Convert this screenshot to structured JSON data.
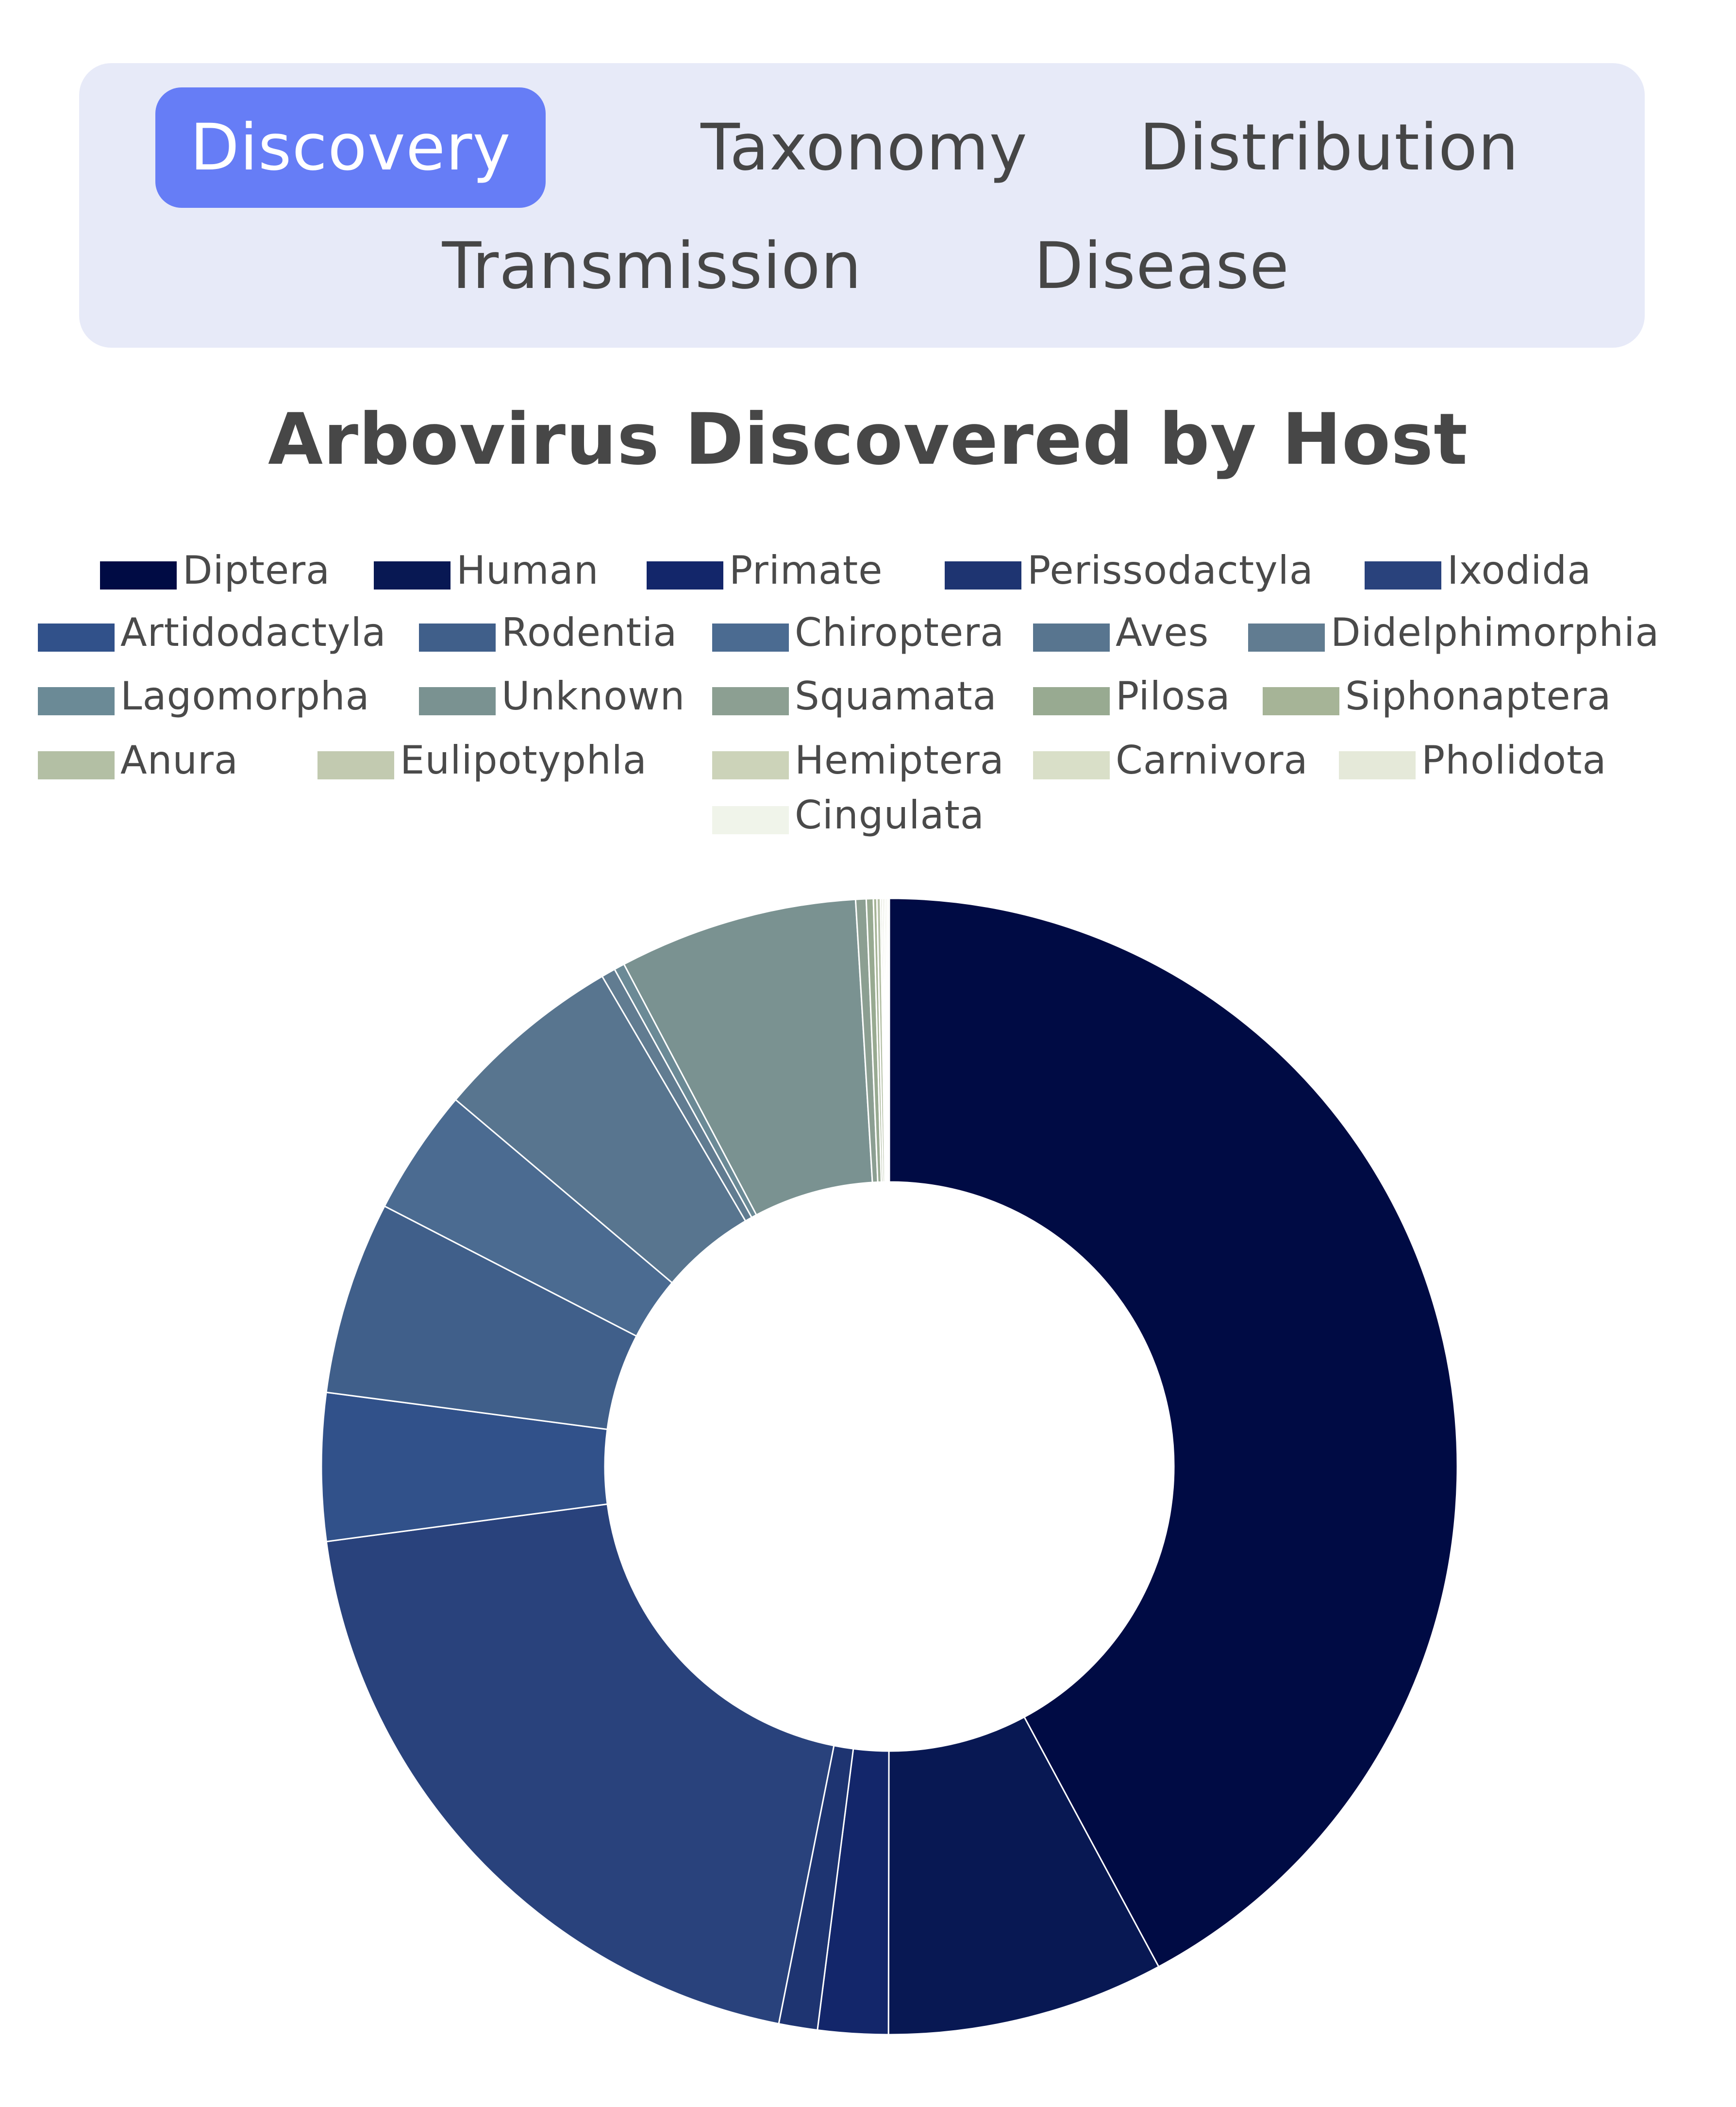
{
  "tabs": [
    {
      "label": "Discovery",
      "active": true
    },
    {
      "label": "Taxonomy",
      "active": false
    },
    {
      "label": "Distribution",
      "active": false
    },
    {
      "label": "Transmission",
      "active": false
    },
    {
      "label": "Disease",
      "active": false
    }
  ],
  "chart_data": {
    "type": "pie",
    "donut": true,
    "title": "Arbovirus Discovered by Host",
    "legend_position": "top",
    "categories": [
      "Diptera",
      "Human",
      "Primate",
      "Perissodactyla",
      "Ixodida",
      "Artidodactyla",
      "Rodentia",
      "Chiroptera",
      "Aves",
      "Didelphimorphia",
      "Lagomorpha",
      "Unknown",
      "Squamata",
      "Pilosa",
      "Siphonaptera",
      "Anura",
      "Eulipotyphla",
      "Hemiptera",
      "Carnivora",
      "Pholidota",
      "Cingulata"
    ],
    "values": [
      42.2,
      7.9,
      2.0,
      1.1,
      19.8,
      4.2,
      5.5,
      3.6,
      5.4,
      0.4,
      0.3,
      6.8,
      0.3,
      0.2,
      0.1,
      0.1,
      0.05,
      0.05,
      0.05,
      0.05,
      0.05
    ],
    "colors": [
      "#000b44",
      "#081853",
      "#13266a",
      "#1e3471",
      "#29427c",
      "#31518a",
      "#405f8a",
      "#4b6b91",
      "#58758f",
      "#617c91",
      "#6b8a96",
      "#7a9291",
      "#8c9f92",
      "#98aa91",
      "#a6b497",
      "#b3bfa4",
      "#c2cab0",
      "#ccd3b9",
      "#d9dfc8",
      "#e5e9d9",
      "#f0f4ea"
    ]
  }
}
